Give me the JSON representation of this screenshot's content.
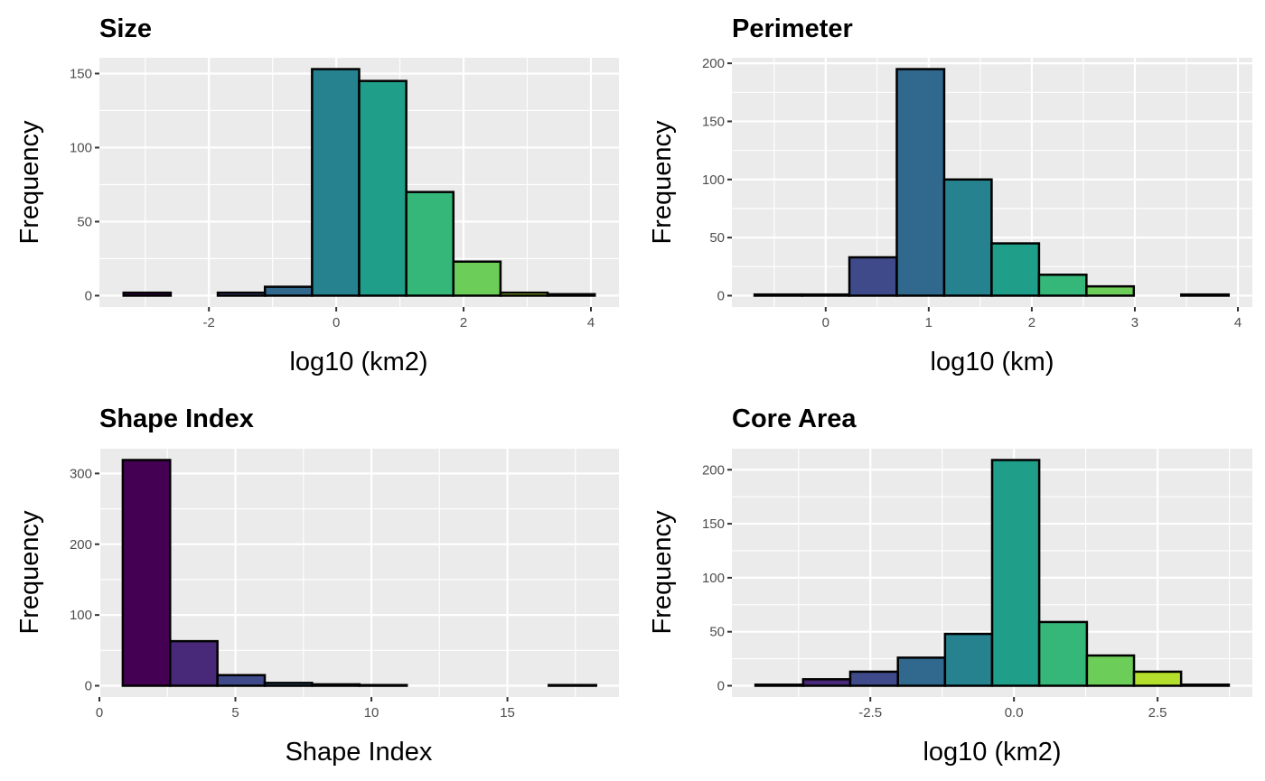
{
  "chart_data": [
    {
      "type": "bar",
      "subtype": "histogram",
      "title": "Size",
      "xlabel": "log10 (km2)",
      "ylabel": "Frequency",
      "bin_edges": [
        -3.34,
        -2.6,
        -1.86,
        -1.12,
        -0.38,
        0.36,
        1.1,
        1.84,
        2.58,
        3.32,
        4.06
      ],
      "values": [
        2,
        0,
        2,
        6,
        153,
        145,
        70,
        23,
        2,
        1
      ],
      "colors": [
        "#440154",
        "#482878",
        "#3E4A89",
        "#31688E",
        "#26828E",
        "#1F9E89",
        "#35B779",
        "#6DCD59",
        "#B4DE2C",
        "#FDE725"
      ],
      "xlim": [
        -3.72,
        4.44
      ],
      "ylim": [
        -7.65,
        160.65
      ],
      "xticks": [
        -2,
        0,
        2,
        4
      ],
      "xtick_labels": [
        "-2",
        "0",
        "2",
        "4"
      ],
      "yticks": [
        0,
        50,
        100,
        150
      ],
      "ytick_labels": [
        "0",
        "50",
        "100",
        "150"
      ],
      "grid": true
    },
    {
      "type": "bar",
      "subtype": "histogram",
      "title": "Perimeter",
      "xlabel": "log10 (km)",
      "ylabel": "Frequency",
      "bin_edges": [
        -0.69,
        -0.23,
        0.23,
        0.69,
        1.15,
        1.61,
        2.07,
        2.53,
        2.99,
        3.45,
        3.91
      ],
      "values": [
        1,
        1,
        33,
        195,
        100,
        45,
        18,
        8,
        0,
        1
      ],
      "colors": [
        "#440154",
        "#482878",
        "#3E4A89",
        "#31688E",
        "#26828E",
        "#1F9E89",
        "#35B779",
        "#6DCD59",
        "#B4DE2C",
        "#FDE725"
      ],
      "xlim": [
        -0.91,
        4.14
      ],
      "ylim": [
        -9.75,
        204.75
      ],
      "xticks": [
        0,
        1,
        2,
        3,
        4
      ],
      "xtick_labels": [
        "0",
        "1",
        "2",
        "3",
        "4"
      ],
      "yticks": [
        0,
        50,
        100,
        150,
        200
      ],
      "ytick_labels": [
        "0",
        "50",
        "100",
        "150",
        "200"
      ],
      "grid": true
    },
    {
      "type": "bar",
      "subtype": "histogram",
      "title": "Shape Index",
      "xlabel": "Shape Index",
      "ylabel": "Frequency",
      "bin_edges": [
        0.86,
        2.6,
        4.34,
        6.08,
        7.82,
        9.56,
        11.3,
        13.04,
        14.78,
        16.52,
        18.26
      ],
      "values": [
        319,
        63,
        15,
        4,
        2,
        1,
        0,
        0,
        0,
        1
      ],
      "colors": [
        "#440154",
        "#482878",
        "#3E4A89",
        "#31688E",
        "#26828E",
        "#1F9E89",
        "#35B779",
        "#6DCD59",
        "#B4DE2C",
        "#FDE725"
      ],
      "xlim": [
        0,
        19.1
      ],
      "ylim": [
        -15.95,
        334.95
      ],
      "xticks": [
        0,
        5,
        10,
        15
      ],
      "xtick_labels": [
        "0",
        "5",
        "10",
        "15"
      ],
      "yticks": [
        0,
        100,
        200,
        300
      ],
      "ytick_labels": [
        "0",
        "100",
        "200",
        "300"
      ],
      "grid": true
    },
    {
      "type": "bar",
      "subtype": "histogram",
      "title": "Core Area",
      "xlabel": "log10 (km2)",
      "ylabel": "Frequency",
      "bin_edges": [
        -4.5,
        -3.67,
        -2.85,
        -2.02,
        -1.2,
        -0.38,
        0.44,
        1.27,
        2.09,
        2.91,
        3.74
      ],
      "values": [
        1,
        6,
        13,
        26,
        48,
        209,
        59,
        28,
        13,
        1
      ],
      "colors": [
        "#440154",
        "#482878",
        "#3E4A89",
        "#31688E",
        "#26828E",
        "#1F9E89",
        "#35B779",
        "#6DCD59",
        "#B4DE2C",
        "#FDE725"
      ],
      "xlim": [
        -4.91,
        4.15
      ],
      "ylim": [
        -10.45,
        219.45
      ],
      "xticks": [
        -2.5,
        0.0,
        2.5
      ],
      "xtick_labels": [
        "-2.5",
        "0.0",
        "2.5"
      ],
      "yticks": [
        0,
        50,
        100,
        150,
        200
      ],
      "ytick_labels": [
        "0",
        "50",
        "100",
        "150",
        "200"
      ],
      "grid": true
    }
  ]
}
